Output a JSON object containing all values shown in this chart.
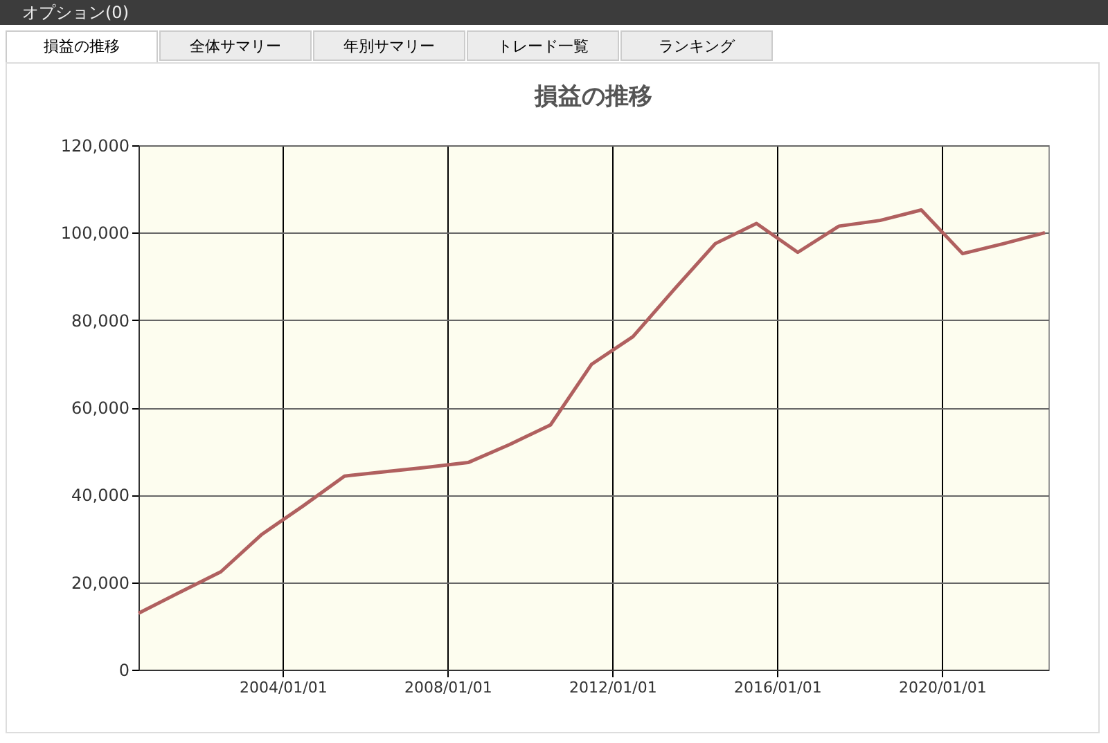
{
  "chart_data": {
    "type": "line",
    "title": "損益の推移",
    "annotations": [
      "オプション(0)",
      "損益の推移",
      "全体サマリー",
      "年別サマリー",
      "トレード一覧",
      "ランキング"
    ],
    "x": [
      "2000-07",
      "2001-07",
      "2002-07",
      "2003-07",
      "2004-07",
      "2005-07",
      "2006-07",
      "2007-07",
      "2008-07",
      "2009-07",
      "2010-07",
      "2011-07",
      "2012-07",
      "2013-07",
      "2014-07",
      "2015-07",
      "2016-07",
      "2017-07",
      "2018-07",
      "2019-07",
      "2020-07",
      "2021-07",
      "2022-07"
    ],
    "series": [
      {
        "color": "#b0605f",
        "values": [
          12900,
          17700,
          22400,
          31000,
          37500,
          44300,
          45300,
          46300,
          47400,
          51500,
          56000,
          69900,
          76200,
          87000,
          97500,
          102100,
          95500,
          101500,
          102800,
          105200,
          95200,
          97500,
          100000
        ]
      }
    ],
    "xlim": [
      "2000-07-01",
      "2022-08-01"
    ],
    "xticks": [
      {
        "value": "2004-01-01",
        "label": "2004/01/01"
      },
      {
        "value": "2008-01-01",
        "label": "2008/01/01"
      },
      {
        "value": "2012-01-01",
        "label": "2012/01/01"
      },
      {
        "value": "2016-01-01",
        "label": "2016/01/01"
      },
      {
        "value": "2020-01-01",
        "label": "2020/01/01"
      }
    ],
    "ylim": [
      0,
      120000
    ],
    "yticks": [
      {
        "value": 0,
        "label": "0"
      },
      {
        "value": 20000,
        "label": "20,000"
      },
      {
        "value": 40000,
        "label": "40,000"
      },
      {
        "value": 60000,
        "label": "60,000"
      },
      {
        "value": 80000,
        "label": "80,000"
      },
      {
        "value": 100000,
        "label": "100,000"
      },
      {
        "value": 120000,
        "label": "120,000"
      }
    ],
    "grid": true,
    "marker": "none",
    "line_style": "solid"
  }
}
